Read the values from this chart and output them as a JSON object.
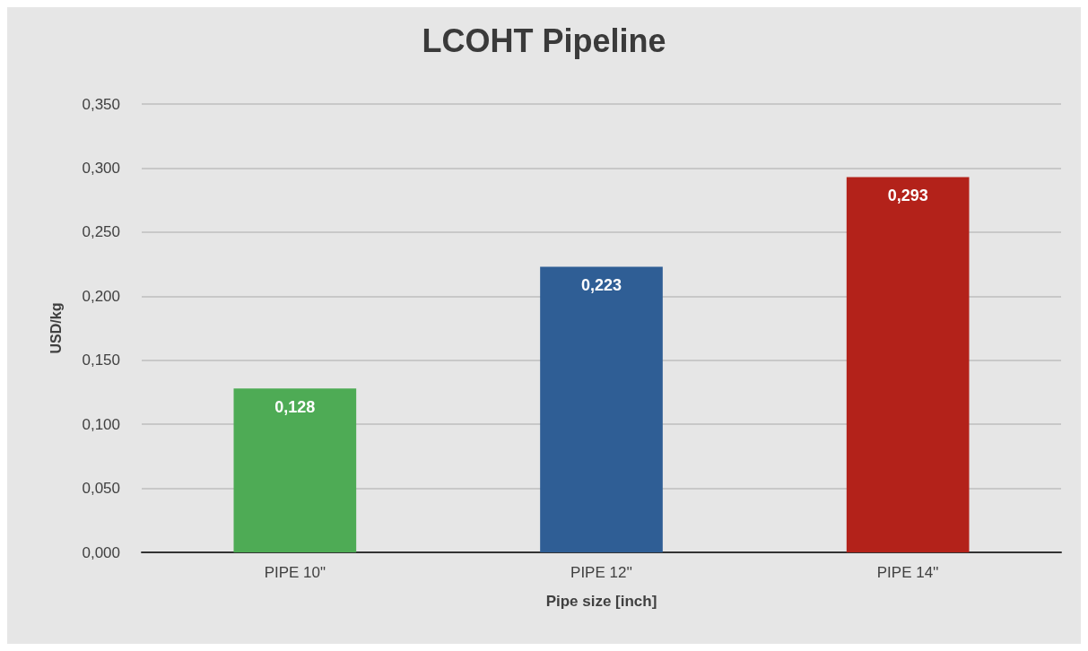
{
  "chart_data": {
    "type": "bar",
    "title": "LCOHT Pipeline",
    "xlabel": "Pipe size [inch]",
    "ylabel": "USD/kg",
    "categories": [
      "PIPE 10\"",
      "PIPE 12''",
      "PIPE 14''"
    ],
    "values": [
      0.128,
      0.223,
      0.293
    ],
    "colors": [
      "#4eab55",
      "#2f5e95",
      "#b3221a"
    ],
    "value_labels": [
      "0,128",
      "0,223",
      "0,293"
    ],
    "ylim": [
      0,
      0.35
    ],
    "yticks": [
      {
        "value": 0,
        "label": "0,000"
      },
      {
        "value": 0.05,
        "label": "0,050"
      },
      {
        "value": 0.1,
        "label": "0,100"
      },
      {
        "value": 0.15,
        "label": "0,150"
      },
      {
        "value": 0.2,
        "label": "0,200"
      },
      {
        "value": 0.25,
        "label": "0,250"
      },
      {
        "value": 0.3,
        "label": "0,300"
      },
      {
        "value": 0.35,
        "label": "0,350"
      }
    ],
    "grid": "y"
  }
}
